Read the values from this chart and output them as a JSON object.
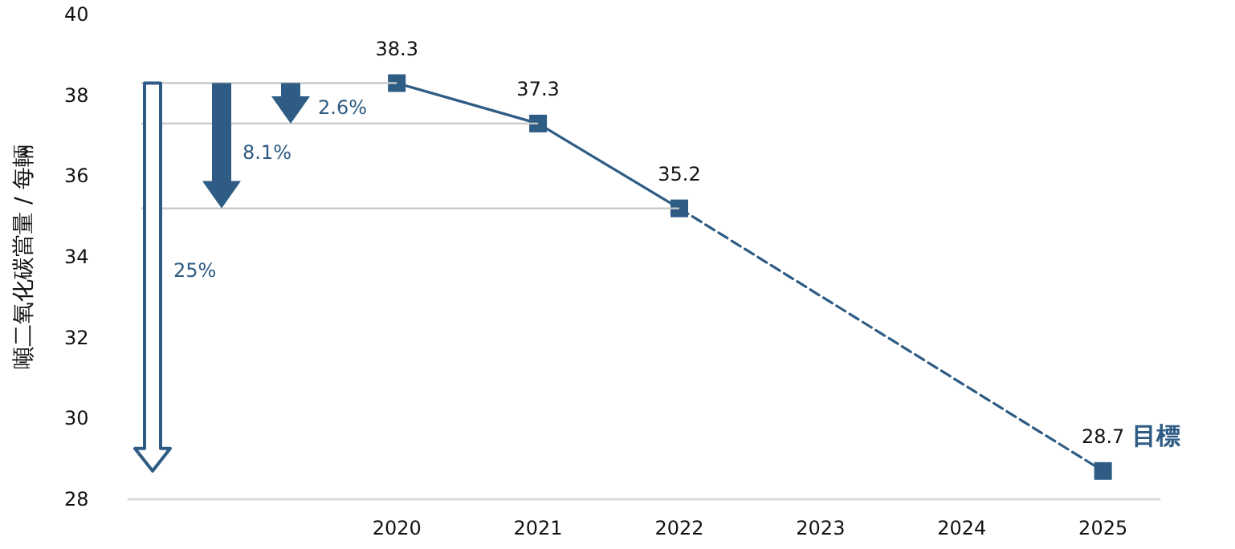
{
  "chart_data": {
    "type": "line",
    "ylabel": "噸二氧化碳當量 / 每輛",
    "xlim": [
      2018.1,
      2025.4
    ],
    "xticks": [
      2020,
      2021,
      2022,
      2023,
      2024,
      2025
    ],
    "ylim": [
      28,
      40
    ],
    "yticks": [
      28,
      30,
      32,
      34,
      36,
      38,
      40
    ],
    "grid": false,
    "marker": "square",
    "series": [
      {
        "color": "#2e5c84",
        "x": [
          2020,
          2021,
          2022
        ],
        "values": [
          38.3,
          37.3,
          35.2
        ],
        "value_labels": [
          "38.3",
          "37.3",
          "35.2"
        ],
        "line_style": "solid"
      },
      {
        "name": "目標",
        "color": "#2e5c84",
        "x": [
          2022,
          2025
        ],
        "values": [
          35.2,
          28.7
        ],
        "value_labels": [
          null,
          "28.7"
        ],
        "line_style": "dashed"
      }
    ],
    "annotations": [
      "25%",
      "8.1%",
      "2.6%"
    ]
  }
}
